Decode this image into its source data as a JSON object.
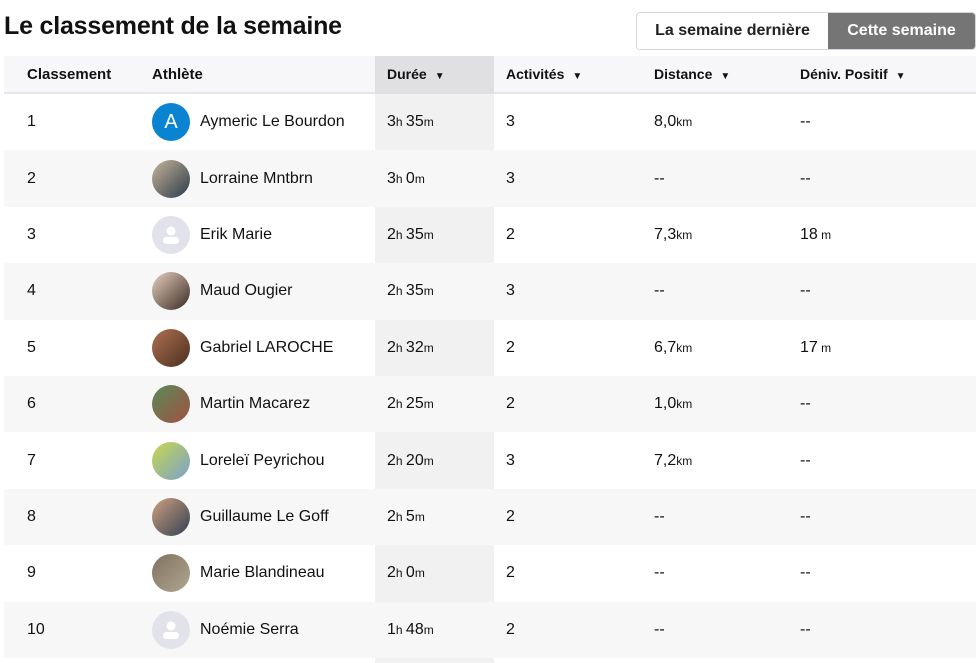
{
  "title": "Le classement de la semaine",
  "toggle": {
    "options": [
      "La semaine dernière",
      "Cette semaine"
    ],
    "selected": "Cette semaine"
  },
  "columns": {
    "rank": "Classement",
    "athlete": "Athlète",
    "duration": "Durée",
    "activities": "Activités",
    "distance": "Distance",
    "elevation": "Déniv. Positif",
    "sort_arrow": "▼"
  },
  "colors": {
    "accent": "#0a84d0",
    "toggle_active": "#757575"
  },
  "rows": [
    {
      "rank": "1",
      "name": "Aymeric Le Bourdon",
      "avatar": "letter",
      "letter": "A",
      "h": "3",
      "m": "35",
      "activities": "3",
      "distance": "8,0",
      "distance_unit": "km",
      "elevation": "--",
      "elevation_unit": ""
    },
    {
      "rank": "2",
      "name": "Lorraine Mntbrn",
      "avatar": "photo",
      "h": "3",
      "m": "0",
      "activities": "3",
      "distance": "--",
      "distance_unit": "",
      "elevation": "--",
      "elevation_unit": ""
    },
    {
      "rank": "3",
      "name": "Erik Marie",
      "avatar": "default",
      "h": "2",
      "m": "35",
      "activities": "2",
      "distance": "7,3",
      "distance_unit": "km",
      "elevation": "18",
      "elevation_unit": " m"
    },
    {
      "rank": "4",
      "name": "Maud Ougier",
      "avatar": "photo",
      "h": "2",
      "m": "35",
      "activities": "3",
      "distance": "--",
      "distance_unit": "",
      "elevation": "--",
      "elevation_unit": ""
    },
    {
      "rank": "5",
      "name": "Gabriel LAROCHE",
      "avatar": "photo",
      "h": "2",
      "m": "32",
      "activities": "2",
      "distance": "6,7",
      "distance_unit": "km",
      "elevation": "17",
      "elevation_unit": " m"
    },
    {
      "rank": "6",
      "name": "Martin Macarez",
      "avatar": "photo",
      "h": "2",
      "m": "25",
      "activities": "2",
      "distance": "1,0",
      "distance_unit": "km",
      "elevation": "--",
      "elevation_unit": ""
    },
    {
      "rank": "7",
      "name": "Loreleï Peyrichou",
      "avatar": "photo",
      "h": "2",
      "m": "20",
      "activities": "3",
      "distance": "7,2",
      "distance_unit": "km",
      "elevation": "--",
      "elevation_unit": ""
    },
    {
      "rank": "8",
      "name": "Guillaume Le Goff",
      "avatar": "photo",
      "h": "2",
      "m": "5",
      "activities": "2",
      "distance": "--",
      "distance_unit": "",
      "elevation": "--",
      "elevation_unit": ""
    },
    {
      "rank": "9",
      "name": "Marie Blandineau",
      "avatar": "photo",
      "h": "2",
      "m": "0",
      "activities": "2",
      "distance": "--",
      "distance_unit": "",
      "elevation": "--",
      "elevation_unit": ""
    },
    {
      "rank": "10",
      "name": "Noémie Serra",
      "avatar": "default",
      "h": "1",
      "m": "48",
      "activities": "2",
      "distance": "--",
      "distance_unit": "",
      "elevation": "--",
      "elevation_unit": ""
    }
  ]
}
